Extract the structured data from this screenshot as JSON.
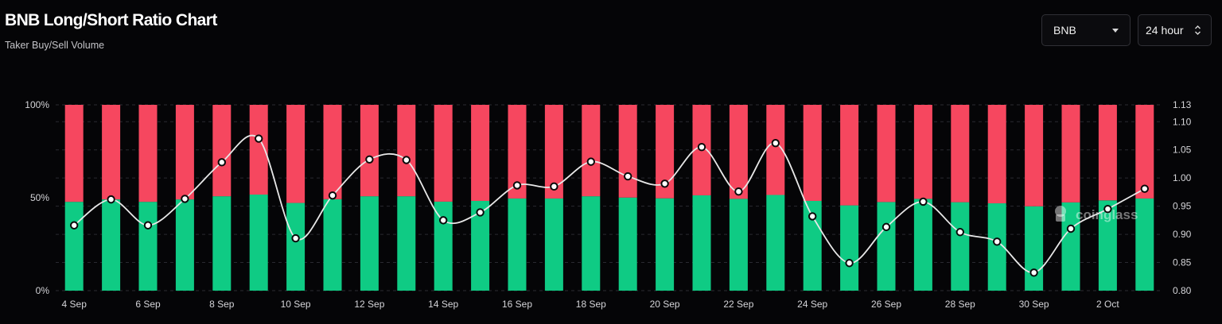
{
  "header": {
    "title": "BNB Long/Short Ratio Chart",
    "subtitle": "Taker Buy/Sell Volume"
  },
  "controls": {
    "coin": "BNB",
    "range": "24 hour"
  },
  "watermark": "coinglass",
  "colors": {
    "background": "#050507",
    "long": "#0fcb84",
    "short": "#f6475f",
    "ratio_line": "#e8e8e8"
  },
  "chart_data": {
    "type": "bar",
    "stacked": true,
    "categories": [
      "4 Sep",
      "5 Sep",
      "6 Sep",
      "7 Sep",
      "8 Sep",
      "9 Sep",
      "10 Sep",
      "11 Sep",
      "12 Sep",
      "13 Sep",
      "14 Sep",
      "15 Sep",
      "16 Sep",
      "17 Sep",
      "18 Sep",
      "19 Sep",
      "20 Sep",
      "21 Sep",
      "22 Sep",
      "23 Sep",
      "24 Sep",
      "25 Sep",
      "26 Sep",
      "27 Sep",
      "28 Sep",
      "29 Sep",
      "30 Sep",
      "1 Oct",
      "2 Oct",
      "3 Oct"
    ],
    "x_tick_labels": [
      "4 Sep",
      "6 Sep",
      "8 Sep",
      "10 Sep",
      "12 Sep",
      "14 Sep",
      "16 Sep",
      "18 Sep",
      "20 Sep",
      "22 Sep",
      "24 Sep",
      "26 Sep",
      "28 Sep",
      "30 Sep",
      "2 Oct"
    ],
    "series": [
      {
        "kind": "bar",
        "axis": "left",
        "values": [
          47.8,
          49.1,
          47.8,
          49.1,
          50.8,
          51.7,
          47.2,
          49.2,
          50.8,
          50.8,
          47.9,
          48.3,
          49.6,
          49.6,
          50.8,
          50.1,
          49.7,
          51.3,
          49.4,
          51.5,
          48.3,
          45.9,
          47.7,
          49.4,
          47.6,
          47.0,
          45.4,
          47.5,
          48.6,
          49.6
        ]
      },
      {
        "kind": "bar",
        "axis": "left",
        "values": [
          52.2,
          50.9,
          52.2,
          50.9,
          49.2,
          48.3,
          52.8,
          50.8,
          49.2,
          49.2,
          52.1,
          51.7,
          50.4,
          50.4,
          49.2,
          49.9,
          50.3,
          48.7,
          50.6,
          48.5,
          51.7,
          54.1,
          52.3,
          50.6,
          52.4,
          53.0,
          54.6,
          52.5,
          51.4,
          50.4
        ]
      },
      {
        "kind": "line",
        "axis": "right",
        "values": [
          0.916,
          0.962,
          0.916,
          0.963,
          1.028,
          1.07,
          0.893,
          0.969,
          1.033,
          1.032,
          0.925,
          0.939,
          0.987,
          0.985,
          1.029,
          1.003,
          0.99,
          1.055,
          0.976,
          1.062,
          0.932,
          0.849,
          0.913,
          0.958,
          0.904,
          0.887,
          0.832,
          0.91,
          0.945,
          0.981
        ]
      }
    ],
    "y_left": {
      "ticks": [
        "0%",
        "50%",
        "100%"
      ],
      "ylim": [
        0,
        100
      ]
    },
    "y_right": {
      "ticks": [
        "0.80",
        "0.85",
        "0.90",
        "0.95",
        "1.00",
        "1.05",
        "1.10",
        "1.13"
      ],
      "ylim": [
        0.8,
        1.13
      ]
    },
    "grid": true,
    "legend": "none"
  }
}
